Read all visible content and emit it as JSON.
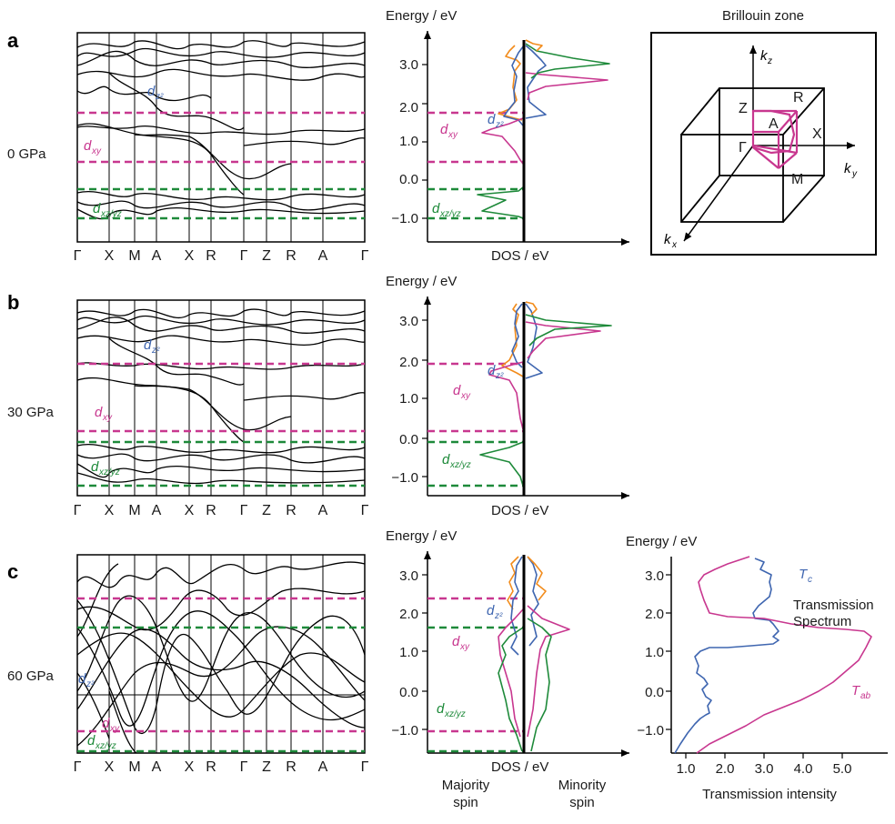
{
  "panel_labels": [
    "a",
    "b",
    "c"
  ],
  "pressures": [
    "0 GPa",
    "30 GPa",
    "60 GPa"
  ],
  "kpath": [
    "Γ",
    "X",
    "M",
    "A",
    "X",
    "R",
    "Γ",
    "Z",
    "R",
    "A",
    "Γ"
  ],
  "energy_label": "Energy / eV",
  "energy_label_c_ts": "Energy / eV",
  "dos_label": "DOS / eV",
  "dos_ticks": [
    "3.0",
    "2.0",
    "1.0",
    "0.0",
    "−1.0"
  ],
  "ts_yticks": [
    "3.0",
    "2.0",
    "1.0",
    "0.0",
    "−1.0"
  ],
  "ts_xticks": [
    "1.0",
    "2.0",
    "3.0",
    "4.0",
    "5.0"
  ],
  "ts_xlabel": "Transmission intensity",
  "ts_title1": "Transmission",
  "ts_title2": "Spectrum",
  "ts_series": {
    "Tc": "T",
    "Tc_sub": "c",
    "Tab": "T",
    "Tab_sub": "ab"
  },
  "spin": {
    "majority1": "Majority",
    "majority2": "spin",
    "minority1": "Minority",
    "minority2": "spin"
  },
  "bz": {
    "title": "Brillouin zone",
    "kz": "k",
    "kz_sub": "z",
    "ky": "k",
    "ky_sub": "y",
    "kx": "k",
    "kx_sub": "x",
    "points": [
      "Z",
      "R",
      "A",
      "X",
      "Γ",
      "M"
    ]
  },
  "orbitals": {
    "dz2": "d",
    "dz2_sub": "z²",
    "dxy": "d",
    "dxy_sub": "xy",
    "dxzyz": "d",
    "dxzyz_sub": "xz/yz"
  },
  "colors": {
    "pink": "#c8378f",
    "green": "#1e8a3a",
    "blue": "#3f66b0",
    "orange": "#f28c1c",
    "black": "#000000"
  },
  "chart_data": [
    {
      "type": "line",
      "panel": "a",
      "pressure": "0 GPa",
      "ylabel": "Energy / eV",
      "xlabel": "DOS / eV",
      "yticks": [
        3.0,
        2.0,
        1.0,
        0.0,
        -1.0
      ],
      "ylim": [
        -1.3,
        3.6
      ],
      "pink_dashed_levels": [
        1.8,
        0.5
      ],
      "green_dashed_levels": [
        -0.25,
        -1.0
      ],
      "series": [
        {
          "name": "dz2",
          "points": [
            [
              -0.4,
              3.5
            ],
            [
              -0.3,
              3.3
            ],
            [
              -0.2,
              3.0
            ],
            [
              -0.4,
              2.7
            ],
            [
              -0.2,
              2.4
            ],
            [
              -0.15,
              2.1
            ],
            [
              0.3,
              1.9
            ],
            [
              0.35,
              1.7
            ],
            [
              0.0,
              1.6
            ]
          ]
        },
        {
          "name": "dxy",
          "points": [
            [
              -0.2,
              2.0
            ],
            [
              -0.3,
              1.8
            ],
            [
              -0.8,
              1.6
            ],
            [
              -1.0,
              1.4
            ],
            [
              -0.2,
              1.0
            ],
            [
              -0.05,
              0.5
            ]
          ]
        },
        {
          "name": "dxz/yz",
          "points": [
            [
              -0.1,
              -0.2
            ],
            [
              -1.2,
              -0.35
            ],
            [
              -0.5,
              -0.5
            ],
            [
              -1.0,
              -0.75
            ],
            [
              -0.1,
              -0.9
            ]
          ]
        },
        {
          "name": "minority dxy",
          "points": [
            [
              0.1,
              3.2
            ],
            [
              3.0,
              2.7
            ],
            [
              0.9,
              2.4
            ],
            [
              0.2,
              2.2
            ],
            [
              0.1,
              2.0
            ]
          ]
        },
        {
          "name": "minority dxz/yz",
          "points": [
            [
              0.1,
              3.5
            ],
            [
              0.6,
              3.3
            ],
            [
              3.3,
              3.0
            ],
            [
              0.7,
              2.8
            ],
            [
              0.15,
              2.5
            ]
          ]
        }
      ]
    },
    {
      "type": "line",
      "panel": "b",
      "pressure": "30 GPa",
      "ylabel": "Energy / eV",
      "xlabel": "DOS / eV",
      "yticks": [
        3.0,
        2.0,
        1.0,
        0.0,
        -1.0
      ],
      "ylim": [
        -1.45,
        3.45
      ],
      "pink_dashed_levels": [
        1.9,
        0.15
      ],
      "green_dashed_levels": [
        -0.2,
        -1.3
      ],
      "series": [
        {
          "name": "dz2",
          "points": [
            [
              -0.3,
              3.3
            ],
            [
              -0.2,
              3.0
            ],
            [
              -0.4,
              2.7
            ],
            [
              -0.2,
              2.3
            ],
            [
              0.1,
              2.0
            ],
            [
              0.3,
              1.8
            ],
            [
              0.0,
              1.6
            ]
          ]
        },
        {
          "name": "dxy",
          "points": [
            [
              -0.2,
              2.0
            ],
            [
              -0.9,
              1.8
            ],
            [
              -1.0,
              1.5
            ],
            [
              -0.3,
              1.0
            ],
            [
              -0.1,
              0.2
            ]
          ]
        },
        {
          "name": "dxz/yz",
          "points": [
            [
              -0.1,
              -0.2
            ],
            [
              -1.0,
              -0.4
            ],
            [
              -0.5,
              -0.6
            ],
            [
              -0.2,
              -1.0
            ],
            [
              -0.05,
              -1.3
            ]
          ]
        },
        {
          "name": "minority dxy",
          "points": [
            [
              0.1,
              3.1
            ],
            [
              2.2,
              2.6
            ],
            [
              0.8,
              2.3
            ],
            [
              0.1,
              2.0
            ]
          ]
        },
        {
          "name": "minority dxz/yz",
          "points": [
            [
              0.1,
              3.3
            ],
            [
              2.6,
              2.9
            ],
            [
              0.6,
              2.6
            ],
            [
              0.1,
              2.3
            ]
          ]
        }
      ]
    },
    {
      "type": "line",
      "panel": "c",
      "pressure": "60 GPa",
      "ylabel": "Energy / eV",
      "xlabel": "DOS / eV",
      "yticks": [
        3.0,
        2.0,
        1.0,
        0.0,
        -1.0
      ],
      "ylim": [
        -1.6,
        3.5
      ],
      "pink_dashed_levels": [
        2.45,
        -1.1
      ],
      "green_dashed_levels": [
        1.65,
        -1.6
      ],
      "series": [
        {
          "name": "dz2",
          "points": [
            [
              -0.4,
              3.3
            ],
            [
              -0.2,
              2.8
            ],
            [
              -0.5,
              2.4
            ],
            [
              -0.2,
              2.0
            ],
            [
              -0.4,
              1.6
            ],
            [
              -0.3,
              1.2
            ],
            [
              -0.1,
              0.8
            ]
          ]
        },
        {
          "name": "dxy",
          "points": [
            [
              -0.4,
              2.1
            ],
            [
              -1.0,
              1.6
            ],
            [
              -0.8,
              1.2
            ],
            [
              -0.5,
              0.6
            ],
            [
              -0.3,
              -0.5
            ],
            [
              -0.1,
              -1.3
            ]
          ]
        },
        {
          "name": "dxz/yz",
          "points": [
            [
              -0.6,
              1.6
            ],
            [
              -1.0,
              1.1
            ],
            [
              -0.7,
              0.4
            ],
            [
              -0.9,
              -0.6
            ],
            [
              -0.4,
              -1.1
            ],
            [
              -0.2,
              -1.5
            ]
          ]
        },
        {
          "name": "minority dxy",
          "points": [
            [
              0.3,
              2.0
            ],
            [
              1.9,
              1.4
            ],
            [
              0.9,
              1.0
            ],
            [
              0.5,
              0.5
            ],
            [
              0.3,
              -0.5
            ],
            [
              0.1,
              -1.2
            ]
          ]
        },
        {
          "name": "minority dxz/yz",
          "points": [
            [
              0.4,
              1.8
            ],
            [
              1.3,
              1.3
            ],
            [
              1.0,
              0.6
            ],
            [
              0.8,
              -0.6
            ],
            [
              0.5,
              -1.1
            ]
          ]
        }
      ]
    },
    {
      "type": "line",
      "panel": "c-transmission",
      "ylabel": "Energy / eV",
      "xlabel": "Transmission intensity",
      "xlim": [
        0.6,
        5.9
      ],
      "ylim": [
        -1.6,
        3.5
      ],
      "xticks": [
        1.0,
        2.0,
        3.0,
        4.0,
        5.0
      ],
      "yticks": [
        3.0,
        2.0,
        1.0,
        0.0,
        -1.0
      ],
      "series": [
        {
          "name": "Tc",
          "points": [
            [
              0.8,
              -1.6
            ],
            [
              1.3,
              -1.0
            ],
            [
              1.8,
              -0.6
            ],
            [
              1.5,
              -0.2
            ],
            [
              1.6,
              0.2
            ],
            [
              1.3,
              0.5
            ],
            [
              1.5,
              0.75
            ],
            [
              3.0,
              1.0
            ],
            [
              3.2,
              1.4
            ],
            [
              2.8,
              1.8
            ],
            [
              3.0,
              2.2
            ],
            [
              2.8,
              2.6
            ],
            [
              3.0,
              3.0
            ],
            [
              2.7,
              3.3
            ]
          ]
        },
        {
          "name": "Tab",
          "points": [
            [
              1.5,
              -1.6
            ],
            [
              2.6,
              -1.2
            ],
            [
              3.8,
              -0.8
            ],
            [
              4.7,
              -0.2
            ],
            [
              5.2,
              0.4
            ],
            [
              5.8,
              1.0
            ],
            [
              4.0,
              1.3
            ],
            [
              2.3,
              1.55
            ],
            [
              1.9,
              1.7
            ],
            [
              1.6,
              2.0
            ],
            [
              1.5,
              2.5
            ],
            [
              2.0,
              3.0
            ],
            [
              2.6,
              3.35
            ]
          ]
        }
      ]
    }
  ]
}
